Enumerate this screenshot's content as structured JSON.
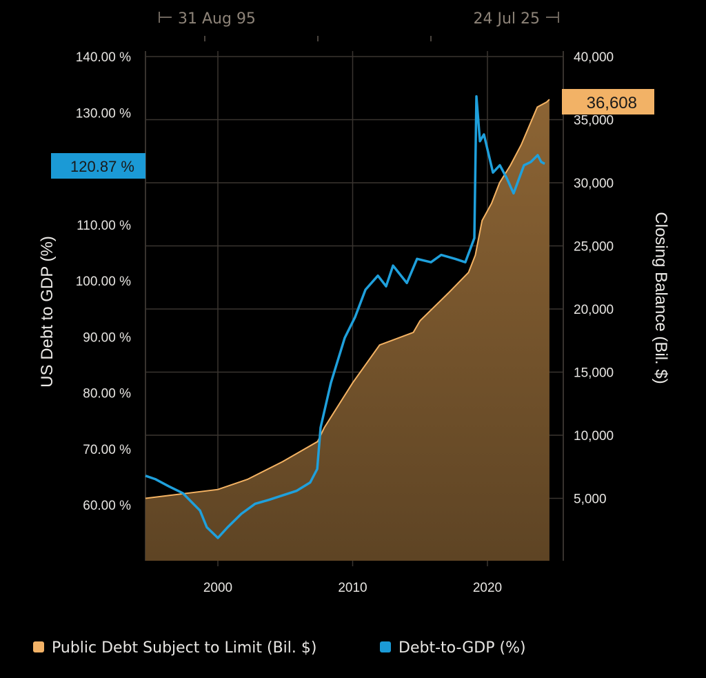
{
  "chart_data": {
    "type": "line+area",
    "date_range": {
      "start": "31 Aug 95",
      "end": "24 Jul 25"
    },
    "x_ticks": [
      2000,
      2010,
      2020
    ],
    "left_axis": {
      "label": "US Debt to GDP (%)",
      "range": [
        50,
        140
      ],
      "ticks": [
        "140.00 %",
        "130.00 %",
        "110.00 %",
        "100.00 %",
        "90.00 %",
        "80.00 %",
        "70.00 %",
        "60.00 %"
      ],
      "tick_values": [
        140,
        130,
        110,
        100,
        90,
        80,
        70,
        60
      ]
    },
    "right_axis": {
      "label": "Closing Balance (Bil. $)",
      "range": [
        0,
        40000
      ],
      "ticks": [
        "40,000",
        "35,000",
        "30,000",
        "25,000",
        "20,000",
        "15,000",
        "10,000",
        "5,000"
      ],
      "tick_values": [
        40000,
        35000,
        30000,
        25000,
        20000,
        15000,
        10000,
        5000
      ]
    },
    "grid": true,
    "legend_position": "bottom",
    "series": [
      {
        "name": "Public Debt Subject to Limit (Bil. $)",
        "axis": "right",
        "type": "area",
        "color": "#f2b266",
        "last_value_label": "36,608",
        "x": [
          1994.63,
          2000.0,
          2002.2,
          2004.8,
          2007.4,
          2007.9,
          2010.0,
          2012.0,
          2014.5,
          2015.0,
          2017.1,
          2018.6,
          2019.1,
          2019.6,
          2020.3,
          2020.9,
          2021.7,
          2022.5,
          2023.7,
          2024.4,
          2024.6
        ],
        "y": [
          5000,
          5700,
          6500,
          7900,
          9500,
          10600,
          14150,
          17150,
          18150,
          19070,
          21260,
          22900,
          24260,
          27000,
          28360,
          30000,
          31370,
          33000,
          36000,
          36400,
          36608
        ]
      },
      {
        "name": "Debt-to-GDP (%)",
        "axis": "left",
        "type": "line",
        "color": "#1fa0dc",
        "last_value_label": "120.87 %",
        "x": [
          1994.63,
          1995.35,
          1996.37,
          1997.39,
          1998.67,
          1999.18,
          2000.0,
          2000.72,
          2001.74,
          2002.76,
          2003.79,
          2004.81,
          2005.83,
          2006.85,
          2007.37,
          2007.62,
          2008.39,
          2009.41,
          2010.18,
          2010.95,
          2011.87,
          2012.48,
          2013.0,
          2014.02,
          2014.78,
          2015.81,
          2016.57,
          2017.6,
          2018.36,
          2019.03,
          2019.18,
          2019.44,
          2019.74,
          2020.41,
          2020.92,
          2021.43,
          2021.94,
          2022.71,
          2023.22,
          2023.73,
          2023.99,
          2024.25
        ],
        "y": [
          65.2,
          64.6,
          63.3,
          62.1,
          59.0,
          56.0,
          54.1,
          56.0,
          58.4,
          60.2,
          60.9,
          61.7,
          62.5,
          64.0,
          66.4,
          73.8,
          81.8,
          89.8,
          93.5,
          98.4,
          100.9,
          99.0,
          102.7,
          99.6,
          103.9,
          103.3,
          104.6,
          103.9,
          103.3,
          107.6,
          132.9,
          124.9,
          126.1,
          119.3,
          120.6,
          118.3,
          115.6,
          120.6,
          121.2,
          122.4,
          121.2,
          120.87
        ]
      }
    ]
  }
}
